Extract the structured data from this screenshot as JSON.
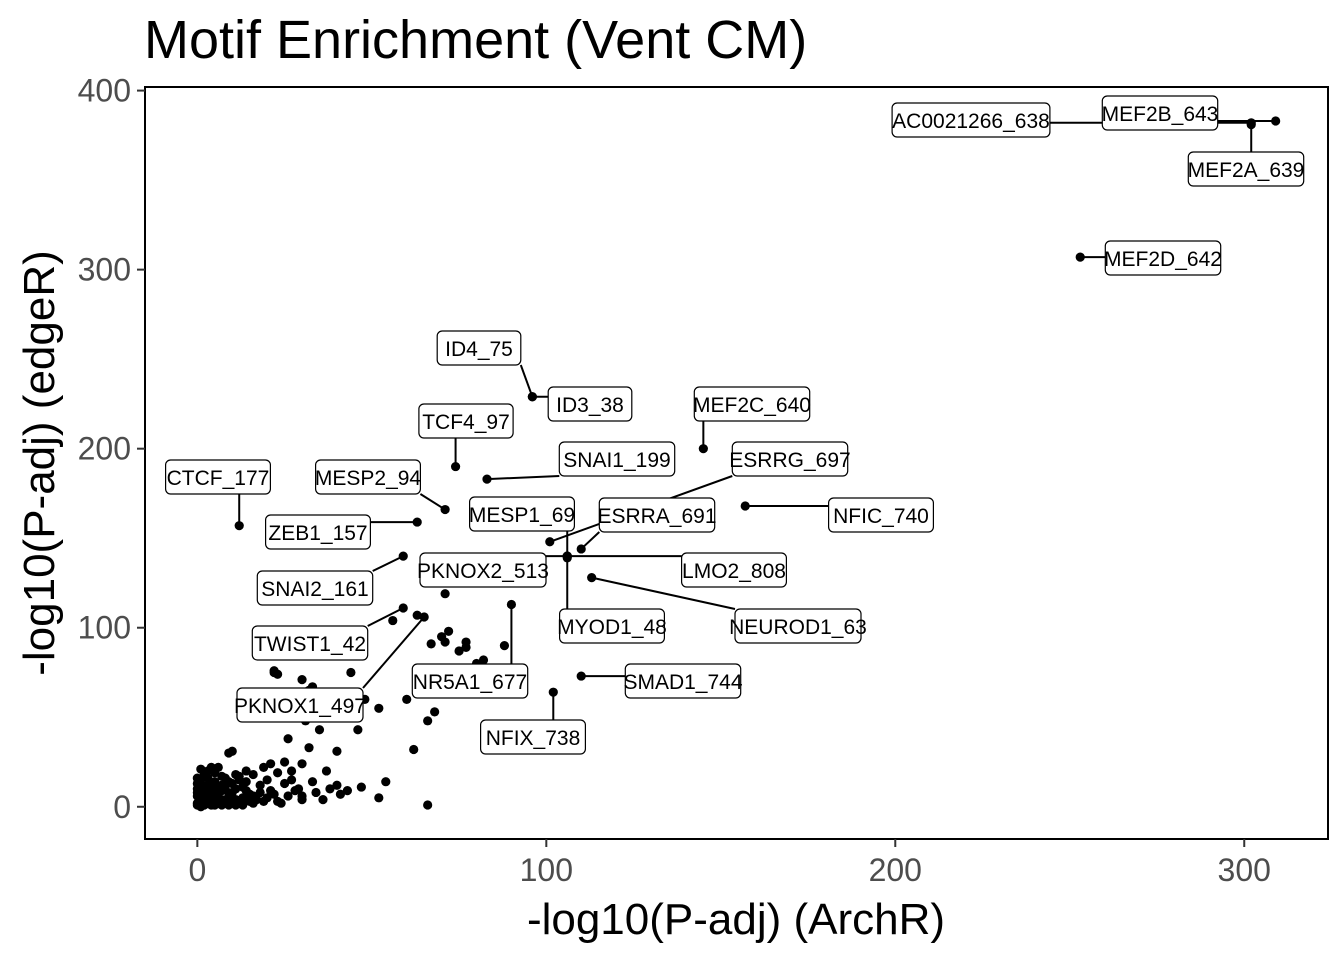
{
  "chart_data": {
    "type": "scatter",
    "title": "Motif Enrichment (Vent CM)",
    "xlabel": "-log10(P-adj) (ArchR)",
    "ylabel": "-log10(P-adj) (edgeR)",
    "xlim": [
      -15,
      324
    ],
    "ylim": [
      -18,
      402
    ],
    "xticks": [
      0,
      100,
      200,
      300
    ],
    "yticks": [
      0,
      100,
      200,
      300,
      400
    ],
    "grid": false,
    "legend": "none",
    "point_color": "#000000",
    "labeled_points": [
      {
        "label": "MEF2B_643",
        "x": 309,
        "y": 383
      },
      {
        "label": "AC0021266_638",
        "x": 302,
        "y": 382
      },
      {
        "label": "MEF2A_639",
        "x": 302,
        "y": 381
      },
      {
        "label": "MEF2D_642",
        "x": 253,
        "y": 307
      },
      {
        "label": "ID4_75",
        "x": 96,
        "y": 229
      },
      {
        "label": "ID3_38",
        "x": 96,
        "y": 229
      },
      {
        "label": "TCF4_97",
        "x": 74,
        "y": 190
      },
      {
        "label": "MEF2C_640",
        "x": 145,
        "y": 200
      },
      {
        "label": "SNAI1_199",
        "x": 83,
        "y": 183
      },
      {
        "label": "ESRRG_697",
        "x": 101,
        "y": 148
      },
      {
        "label": "CTCF_177",
        "x": 12,
        "y": 157
      },
      {
        "label": "MESP2_94",
        "x": 71,
        "y": 166
      },
      {
        "label": "ZEB1_157",
        "x": 63,
        "y": 159
      },
      {
        "label": "MESP1_69",
        "x": 106,
        "y": 140
      },
      {
        "label": "ESRRA_691",
        "x": 110,
        "y": 144
      },
      {
        "label": "NFIC_740",
        "x": 157,
        "y": 168
      },
      {
        "label": "SNAI2_161",
        "x": 59,
        "y": 140
      },
      {
        "label": "PKNOX2_513",
        "x": 106,
        "y": 140
      },
      {
        "label": "LMO2_808",
        "x": 106,
        "y": 140
      },
      {
        "label": "MYOD1_48",
        "x": 106,
        "y": 139
      },
      {
        "label": "NEUROD1_63",
        "x": 113,
        "y": 128
      },
      {
        "label": "TWIST1_42",
        "x": 59,
        "y": 111
      },
      {
        "label": "NR5A1_677",
        "x": 90,
        "y": 113
      },
      {
        "label": "PKNOX1_497",
        "x": 65,
        "y": 106
      },
      {
        "label": "SMAD1_744",
        "x": 110,
        "y": 73
      },
      {
        "label": "NFIX_738",
        "x": 102,
        "y": 64
      }
    ],
    "other_points": [
      [
        71,
        119
      ],
      [
        56,
        104
      ],
      [
        63,
        107
      ],
      [
        67,
        91
      ],
      [
        70,
        95
      ],
      [
        72,
        98
      ],
      [
        71,
        92
      ],
      [
        75,
        87
      ],
      [
        77,
        92
      ],
      [
        77,
        89
      ],
      [
        82,
        82
      ],
      [
        88,
        90
      ],
      [
        80,
        80
      ],
      [
        44,
        75
      ],
      [
        22,
        76
      ],
      [
        22,
        75
      ],
      [
        23,
        74
      ],
      [
        35,
        89
      ],
      [
        42,
        89
      ],
      [
        30,
        71
      ],
      [
        32,
        65
      ],
      [
        33,
        67
      ],
      [
        37,
        64
      ],
      [
        41,
        61
      ],
      [
        44,
        62
      ],
      [
        48,
        60
      ],
      [
        52,
        55
      ],
      [
        60,
        60
      ],
      [
        68,
        53
      ],
      [
        66,
        48
      ],
      [
        46,
        43
      ],
      [
        35,
        43
      ],
      [
        31,
        48
      ],
      [
        30,
        55
      ],
      [
        26,
        38
      ],
      [
        32,
        33
      ],
      [
        40,
        31
      ],
      [
        62,
        32
      ],
      [
        25,
        25
      ],
      [
        30,
        24
      ],
      [
        37,
        20
      ],
      [
        23,
        19
      ],
      [
        27,
        15
      ],
      [
        33,
        14
      ],
      [
        40,
        12
      ],
      [
        41,
        7
      ],
      [
        36,
        4
      ],
      [
        28,
        9
      ],
      [
        30,
        4
      ],
      [
        54,
        14
      ],
      [
        52,
        5
      ],
      [
        66,
        1
      ],
      [
        9,
        30
      ],
      [
        10,
        31
      ],
      [
        6,
        22
      ],
      [
        1,
        21
      ],
      [
        3,
        20
      ],
      [
        5,
        19
      ],
      [
        8,
        16
      ],
      [
        12,
        17
      ],
      [
        16,
        18
      ],
      [
        20,
        15
      ],
      [
        25,
        13
      ],
      [
        29,
        10
      ],
      [
        21,
        9
      ],
      [
        18,
        8
      ],
      [
        15,
        7
      ],
      [
        13,
        5
      ],
      [
        11,
        4
      ],
      [
        9,
        3
      ],
      [
        6,
        2
      ],
      [
        4,
        1
      ],
      [
        2,
        1
      ],
      [
        1,
        0
      ],
      [
        0,
        1
      ],
      [
        0,
        2
      ],
      [
        1,
        3
      ],
      [
        2,
        4
      ],
      [
        3,
        5
      ],
      [
        4,
        6
      ],
      [
        5,
        7
      ],
      [
        6,
        8
      ],
      [
        7,
        9
      ],
      [
        8,
        10
      ],
      [
        2,
        11
      ],
      [
        3,
        12
      ],
      [
        4,
        13
      ],
      [
        5,
        14
      ],
      [
        1,
        15
      ],
      [
        0,
        6
      ],
      [
        0,
        8
      ],
      [
        0,
        10
      ],
      [
        1,
        7
      ],
      [
        2,
        9
      ],
      [
        6,
        5
      ],
      [
        7,
        4
      ],
      [
        9,
        6
      ],
      [
        10,
        8
      ],
      [
        11,
        10
      ],
      [
        13,
        11
      ],
      [
        14,
        9
      ],
      [
        16,
        6
      ],
      [
        17,
        4
      ],
      [
        19,
        3
      ],
      [
        20,
        5
      ],
      [
        22,
        7
      ],
      [
        23,
        3
      ],
      [
        24,
        2
      ],
      [
        18,
        12
      ],
      [
        14,
        14
      ],
      [
        10,
        13
      ],
      [
        8,
        12
      ],
      [
        1,
        2
      ],
      [
        2,
        3
      ],
      [
        3,
        2
      ],
      [
        4,
        3
      ],
      [
        5,
        1
      ],
      [
        6,
        3
      ],
      [
        7,
        1
      ],
      [
        8,
        2
      ],
      [
        9,
        1
      ],
      [
        10,
        2
      ],
      [
        11,
        1
      ],
      [
        12,
        2
      ],
      [
        13,
        1
      ],
      [
        15,
        3
      ],
      [
        16,
        2
      ],
      [
        26,
        6
      ],
      [
        30,
        6
      ],
      [
        34,
        8
      ],
      [
        38,
        10
      ],
      [
        43,
        9
      ],
      [
        47,
        11
      ],
      [
        27,
        20
      ],
      [
        21,
        24
      ],
      [
        19,
        22
      ],
      [
        14,
        20
      ],
      [
        11,
        18
      ],
      [
        7,
        17
      ],
      [
        3,
        16
      ],
      [
        0,
        13
      ],
      [
        0,
        16
      ],
      [
        2,
        18
      ],
      [
        4,
        22
      ],
      [
        2,
        6
      ],
      [
        3,
        8
      ],
      [
        5,
        10
      ],
      [
        7,
        12
      ],
      [
        9,
        14
      ],
      [
        12,
        15
      ],
      [
        1,
        5
      ],
      [
        1,
        9
      ]
    ]
  }
}
